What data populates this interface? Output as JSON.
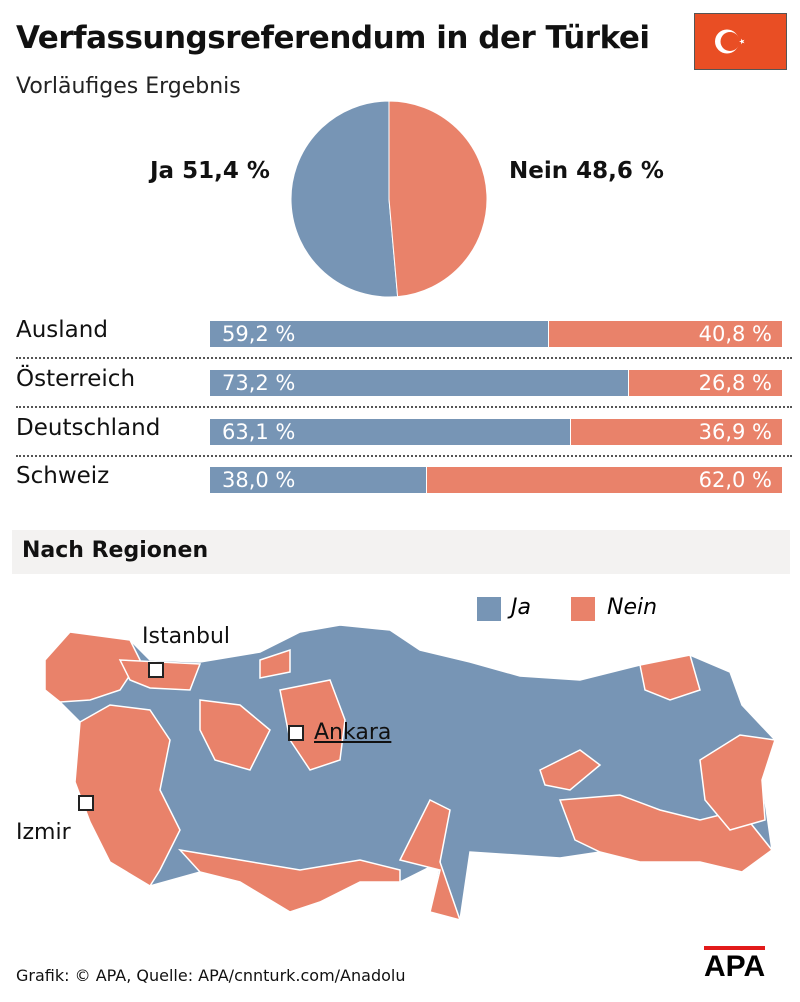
{
  "title": "Verfassungsreferendum in der Türkei",
  "subtitle": "Vorläufiges Ergebnis",
  "flag_icon": "turkey-flag",
  "colors": {
    "ja": "#7795b5",
    "nein": "#e9826a",
    "flag": "#e94e24"
  },
  "chart_data": [
    {
      "type": "pie",
      "slices": [
        {
          "name": "Ja",
          "value": 51.4
        },
        {
          "name": "Nein",
          "value": 48.6
        }
      ],
      "labels": {
        "ja": "Ja 51,4 %",
        "nein": "Nein 48,6 %"
      }
    },
    {
      "type": "bar",
      "stacked": true,
      "orientation": "horizontal",
      "categories": [
        "Ausland",
        "Österreich",
        "Deutschland",
        "Schweiz"
      ],
      "series": [
        {
          "name": "Ja",
          "values": [
            59.2,
            73.2,
            63.1,
            38.0
          ],
          "labels": [
            "59,2 %",
            "73,2 %",
            "63,1 %",
            "38,0 %"
          ]
        },
        {
          "name": "Nein",
          "values": [
            40.8,
            26.8,
            36.9,
            62.0
          ],
          "labels": [
            "40,8 %",
            "26,8 %",
            "36,9 %",
            "62,0 %"
          ]
        }
      ]
    }
  ],
  "map": {
    "heading": "Nach Regionen",
    "legend": {
      "ja": "Ja",
      "nein": "Nein"
    },
    "cities": {
      "istanbul": "Istanbul",
      "ankara": "Ankara",
      "izmir": "Izmir"
    }
  },
  "footer": "Grafik: © APA, Quelle: APA/cnnturk.com/Anadolu",
  "logo": "APA"
}
